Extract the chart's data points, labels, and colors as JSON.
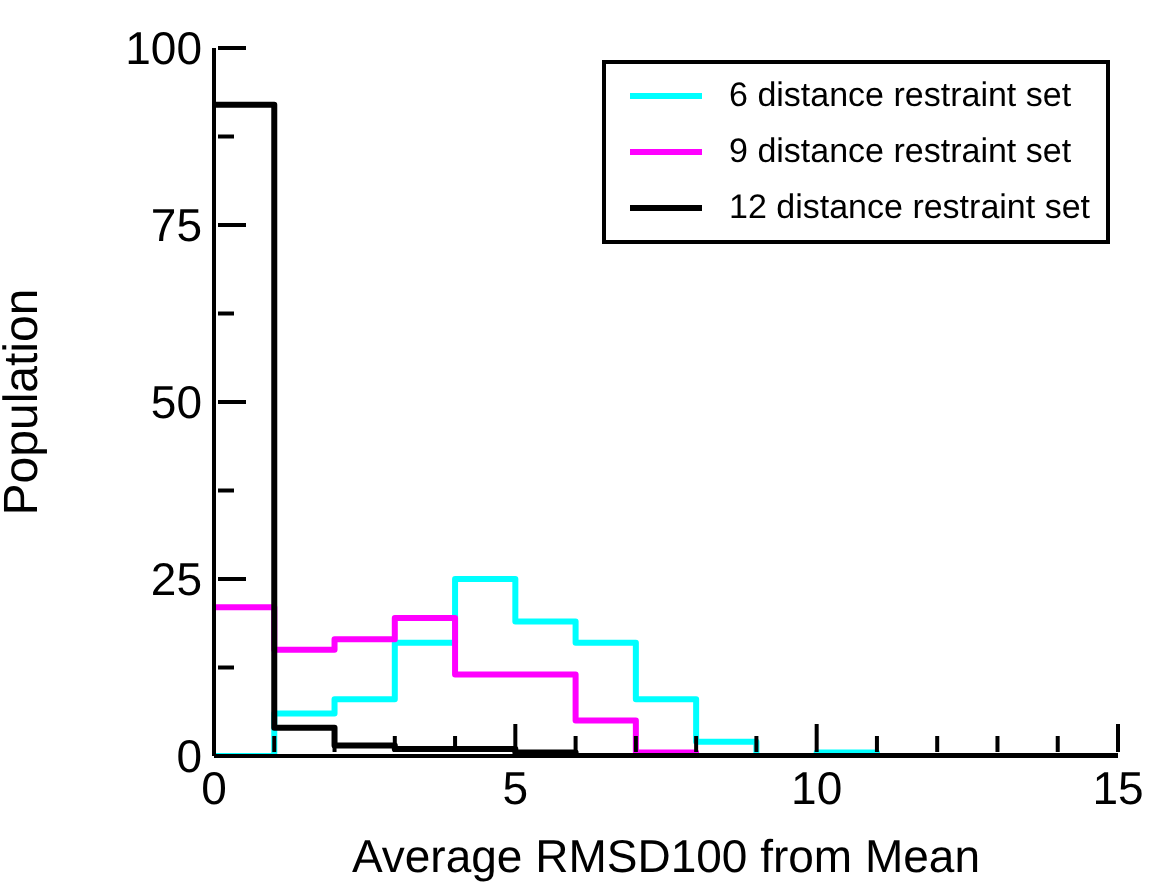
{
  "chart_data": {
    "type": "histogram",
    "xlabel": "Average RMSD100 from Mean",
    "ylabel": "Population",
    "bins": [
      0,
      1,
      2,
      3,
      4,
      5,
      6,
      7,
      8,
      9,
      10,
      11,
      12,
      13,
      14,
      15
    ],
    "series": [
      {
        "name": "6 distance restraint set",
        "color": "#00ffff",
        "values": [
          0,
          6,
          8,
          16,
          25,
          19,
          16,
          8,
          2,
          0,
          0.5,
          0,
          0,
          0,
          0
        ]
      },
      {
        "name": "9 distance restraint set",
        "color": "#ff00ff",
        "values": [
          21,
          15,
          16.5,
          19.5,
          11.5,
          11.5,
          5,
          0.5,
          0,
          0,
          0,
          0,
          0,
          0,
          0
        ]
      },
      {
        "name": "12 distance restraint set",
        "color": "#000000",
        "values": [
          92,
          4,
          1.5,
          1,
          1,
          0.5,
          0,
          0,
          0,
          0,
          0,
          0,
          0,
          0,
          0
        ]
      }
    ],
    "xlim": [
      0,
      15
    ],
    "xticks": [
      0,
      {
        "value": 1,
        "label": null
      },
      {
        "value": 2,
        "label": null
      },
      {
        "value": 3,
        "label": null
      },
      {
        "value": 4,
        "label": null
      },
      5,
      {
        "value": 6,
        "label": null
      },
      {
        "value": 7,
        "label": null
      },
      {
        "value": 8,
        "label": null
      },
      {
        "value": 9,
        "label": null
      },
      10,
      {
        "value": 11,
        "label": null
      },
      {
        "value": 12,
        "label": null
      },
      {
        "value": 13,
        "label": null
      },
      {
        "value": 14,
        "label": null
      },
      15
    ],
    "ylim": [
      0,
      100
    ],
    "yticks": [
      0,
      {
        "value": 12.5,
        "label": null
      },
      25,
      {
        "value": 37.5,
        "label": null
      },
      50,
      {
        "value": 62.5,
        "label": null
      },
      75,
      {
        "value": 87.5,
        "label": null
      },
      100
    ],
    "grid": false,
    "legend": "top right"
  }
}
